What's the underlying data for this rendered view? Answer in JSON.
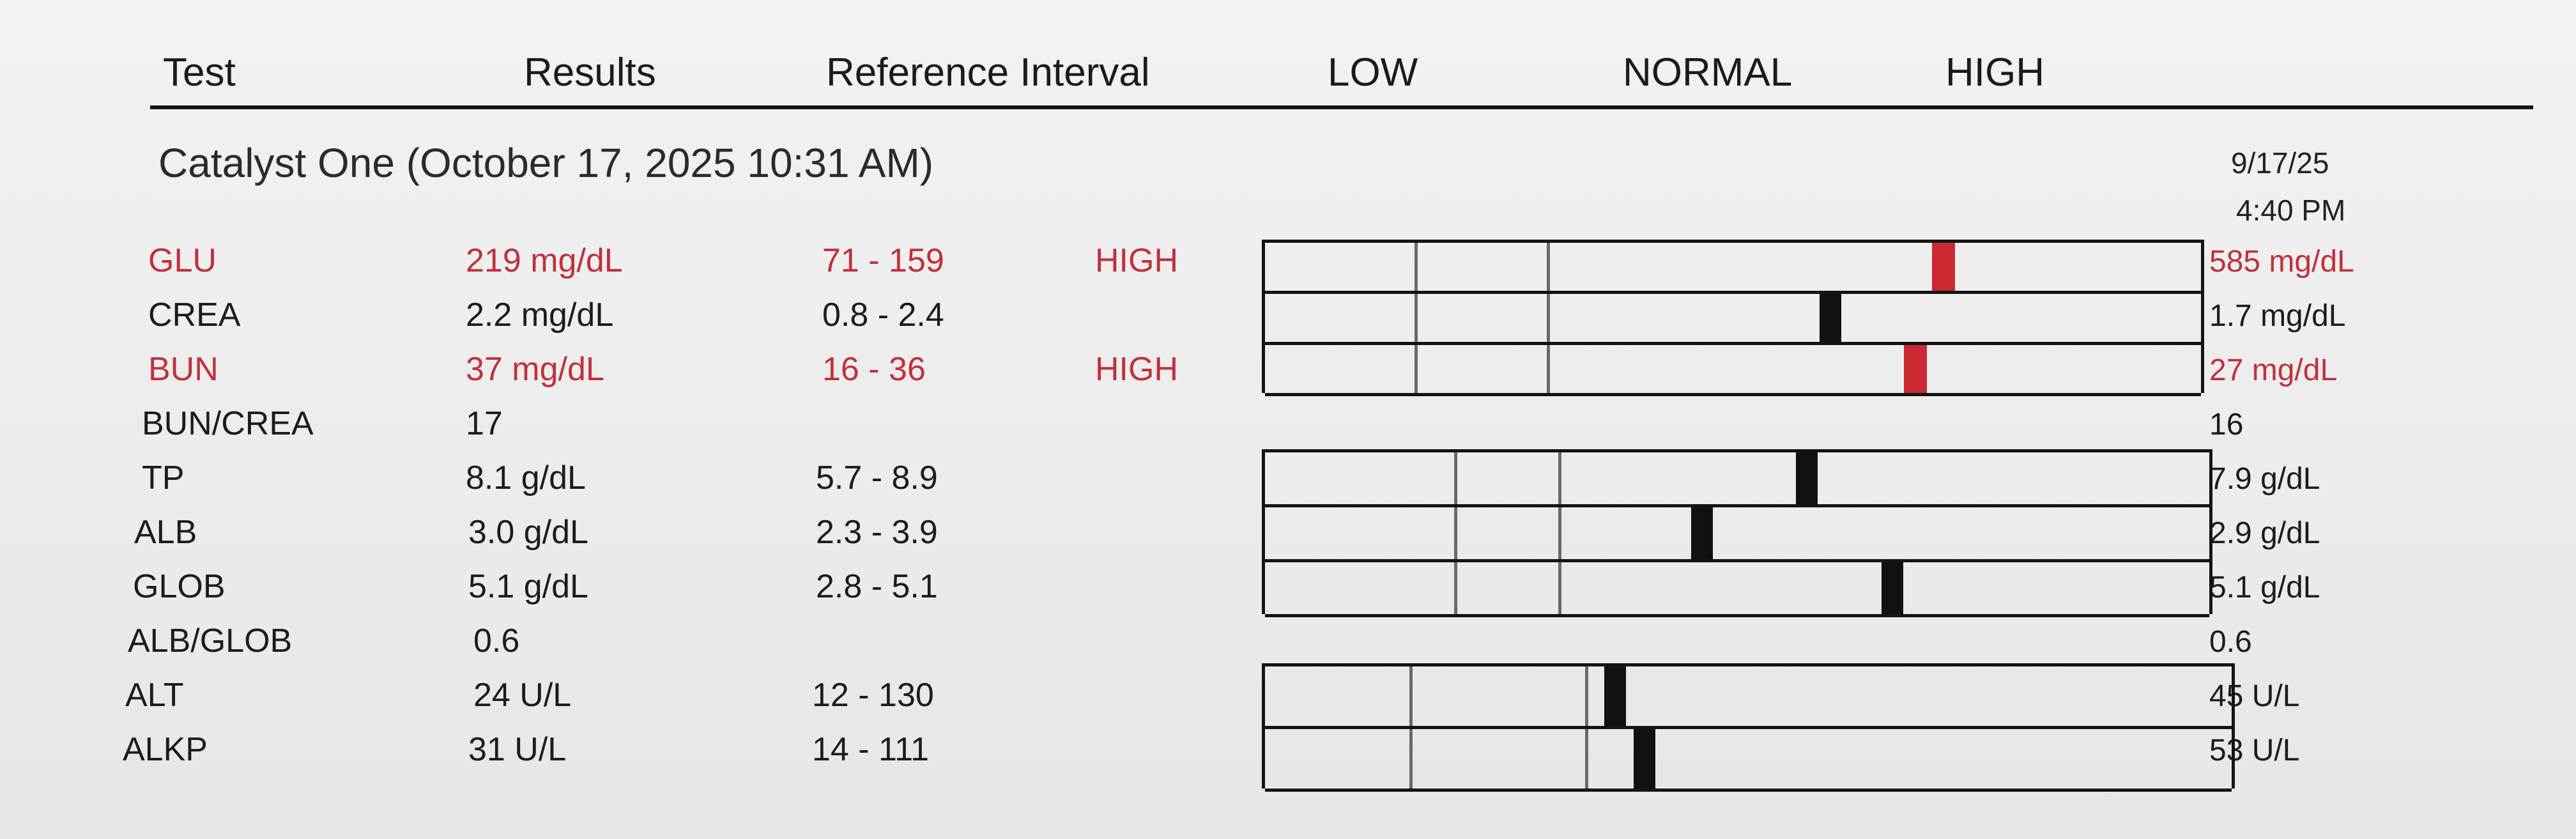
{
  "header": {
    "test": "Test",
    "results": "Results",
    "reference_interval": "Reference Interval",
    "low": "LOW",
    "normal": "NORMAL",
    "high": "HIGH"
  },
  "run_title": "Catalyst One (October 17, 2025 10:31 AM)",
  "previous_run": {
    "date": "9/17/25",
    "time": "4:40 PM"
  },
  "colors": {
    "flag_high": "#c0303a",
    "marker_normal": "#111111",
    "marker_high": "#cc2a33"
  },
  "rows": [
    {
      "test": "GLU",
      "result": "219 mg/dL",
      "ref": "71 - 159",
      "flag": "HIGH",
      "previous": "585 mg/dL",
      "high": true,
      "bar": true,
      "marker_fraction": 0.72
    },
    {
      "test": "CREA",
      "result": "2.2 mg/dL",
      "ref": "0.8 - 2.4",
      "flag": "",
      "previous": "1.7 mg/dL",
      "high": false,
      "bar": true,
      "marker_fraction": 0.6
    },
    {
      "test": "BUN",
      "result": "37 mg/dL",
      "ref": "16 - 36",
      "flag": "HIGH",
      "previous": "27 mg/dL",
      "high": true,
      "bar": true,
      "marker_fraction": 0.69
    },
    {
      "test": "BUN/CREA",
      "result": "17",
      "ref": "",
      "flag": "",
      "previous": "16",
      "high": false,
      "bar": false
    },
    {
      "test": "TP",
      "result": "8.1 g/dL",
      "ref": "5.7 - 8.9",
      "flag": "",
      "previous": "7.9 g/dL",
      "high": false,
      "bar": true,
      "marker_fraction": 0.57
    },
    {
      "test": "ALB",
      "result": "3.0 g/dL",
      "ref": "2.3 - 3.9",
      "flag": "",
      "previous": "2.9 g/dL",
      "high": false,
      "bar": true,
      "marker_fraction": 0.46
    },
    {
      "test": "GLOB",
      "result": "5.1 g/dL",
      "ref": "2.8 - 5.1",
      "flag": "",
      "previous": "5.1 g/dL",
      "high": false,
      "bar": true,
      "marker_fraction": 0.66
    },
    {
      "test": "ALB/GLOB",
      "result": "0.6",
      "ref": "",
      "flag": "",
      "previous": "0.6",
      "high": false,
      "bar": false
    },
    {
      "test": "ALT",
      "result": "24 U/L",
      "ref": "12 - 130",
      "flag": "",
      "previous": "45 U/L",
      "high": false,
      "bar": true,
      "marker_fraction": 0.36
    },
    {
      "test": "ALKP",
      "result": "31 U/L",
      "ref": "14 - 111",
      "flag": "",
      "previous": "53 U/L",
      "high": false,
      "bar": true,
      "marker_fraction": 0.39
    }
  ]
}
